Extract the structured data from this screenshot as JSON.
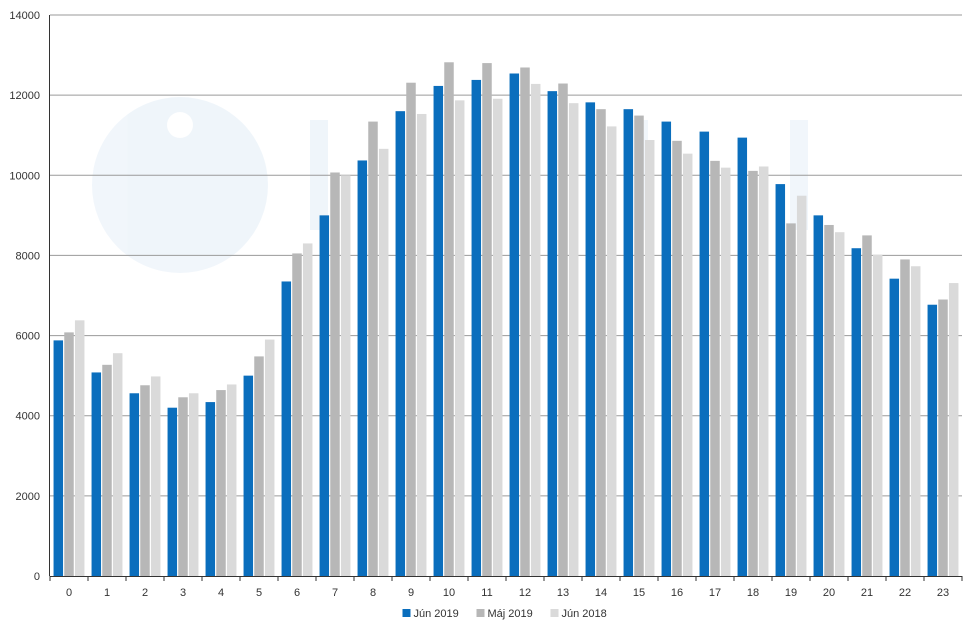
{
  "chart_data": {
    "type": "bar",
    "categories": [
      "0",
      "1",
      "2",
      "3",
      "4",
      "5",
      "6",
      "7",
      "8",
      "9",
      "10",
      "11",
      "12",
      "13",
      "14",
      "15",
      "16",
      "17",
      "18",
      "19",
      "20",
      "21",
      "22",
      "23"
    ],
    "series": [
      {
        "name": "Jún 2019",
        "color": "#0a6ebd",
        "values": [
          5880,
          5080,
          4560,
          4200,
          4340,
          5000,
          7350,
          9000,
          10370,
          11600,
          12230,
          12380,
          12540,
          12100,
          11820,
          11650,
          11340,
          11090,
          10940,
          9780,
          9000,
          8180,
          7420,
          6770
        ]
      },
      {
        "name": "Máj 2019",
        "color": "#b7b7b7",
        "values": [
          6080,
          5270,
          4760,
          4460,
          4640,
          5480,
          8050,
          10070,
          11340,
          12310,
          12820,
          12800,
          12690,
          12290,
          11650,
          11490,
          10860,
          10360,
          10110,
          8800,
          8760,
          8500,
          7900,
          6900
        ]
      },
      {
        "name": "Jún 2018",
        "color": "#dadada",
        "values": [
          6380,
          5560,
          4980,
          4560,
          4780,
          5900,
          8300,
          10000,
          10660,
          11530,
          11870,
          11910,
          12280,
          11800,
          11220,
          10880,
          10540,
          10190,
          10220,
          9490,
          8580,
          8020,
          7730,
          7310
        ]
      }
    ],
    "ylim": [
      0,
      14000
    ],
    "yticks": [
      0,
      2000,
      4000,
      6000,
      8000,
      10000,
      12000,
      14000
    ],
    "grid": true,
    "legend_position": "bottom-center",
    "title": "",
    "xlabel": "",
    "ylabel": ""
  }
}
